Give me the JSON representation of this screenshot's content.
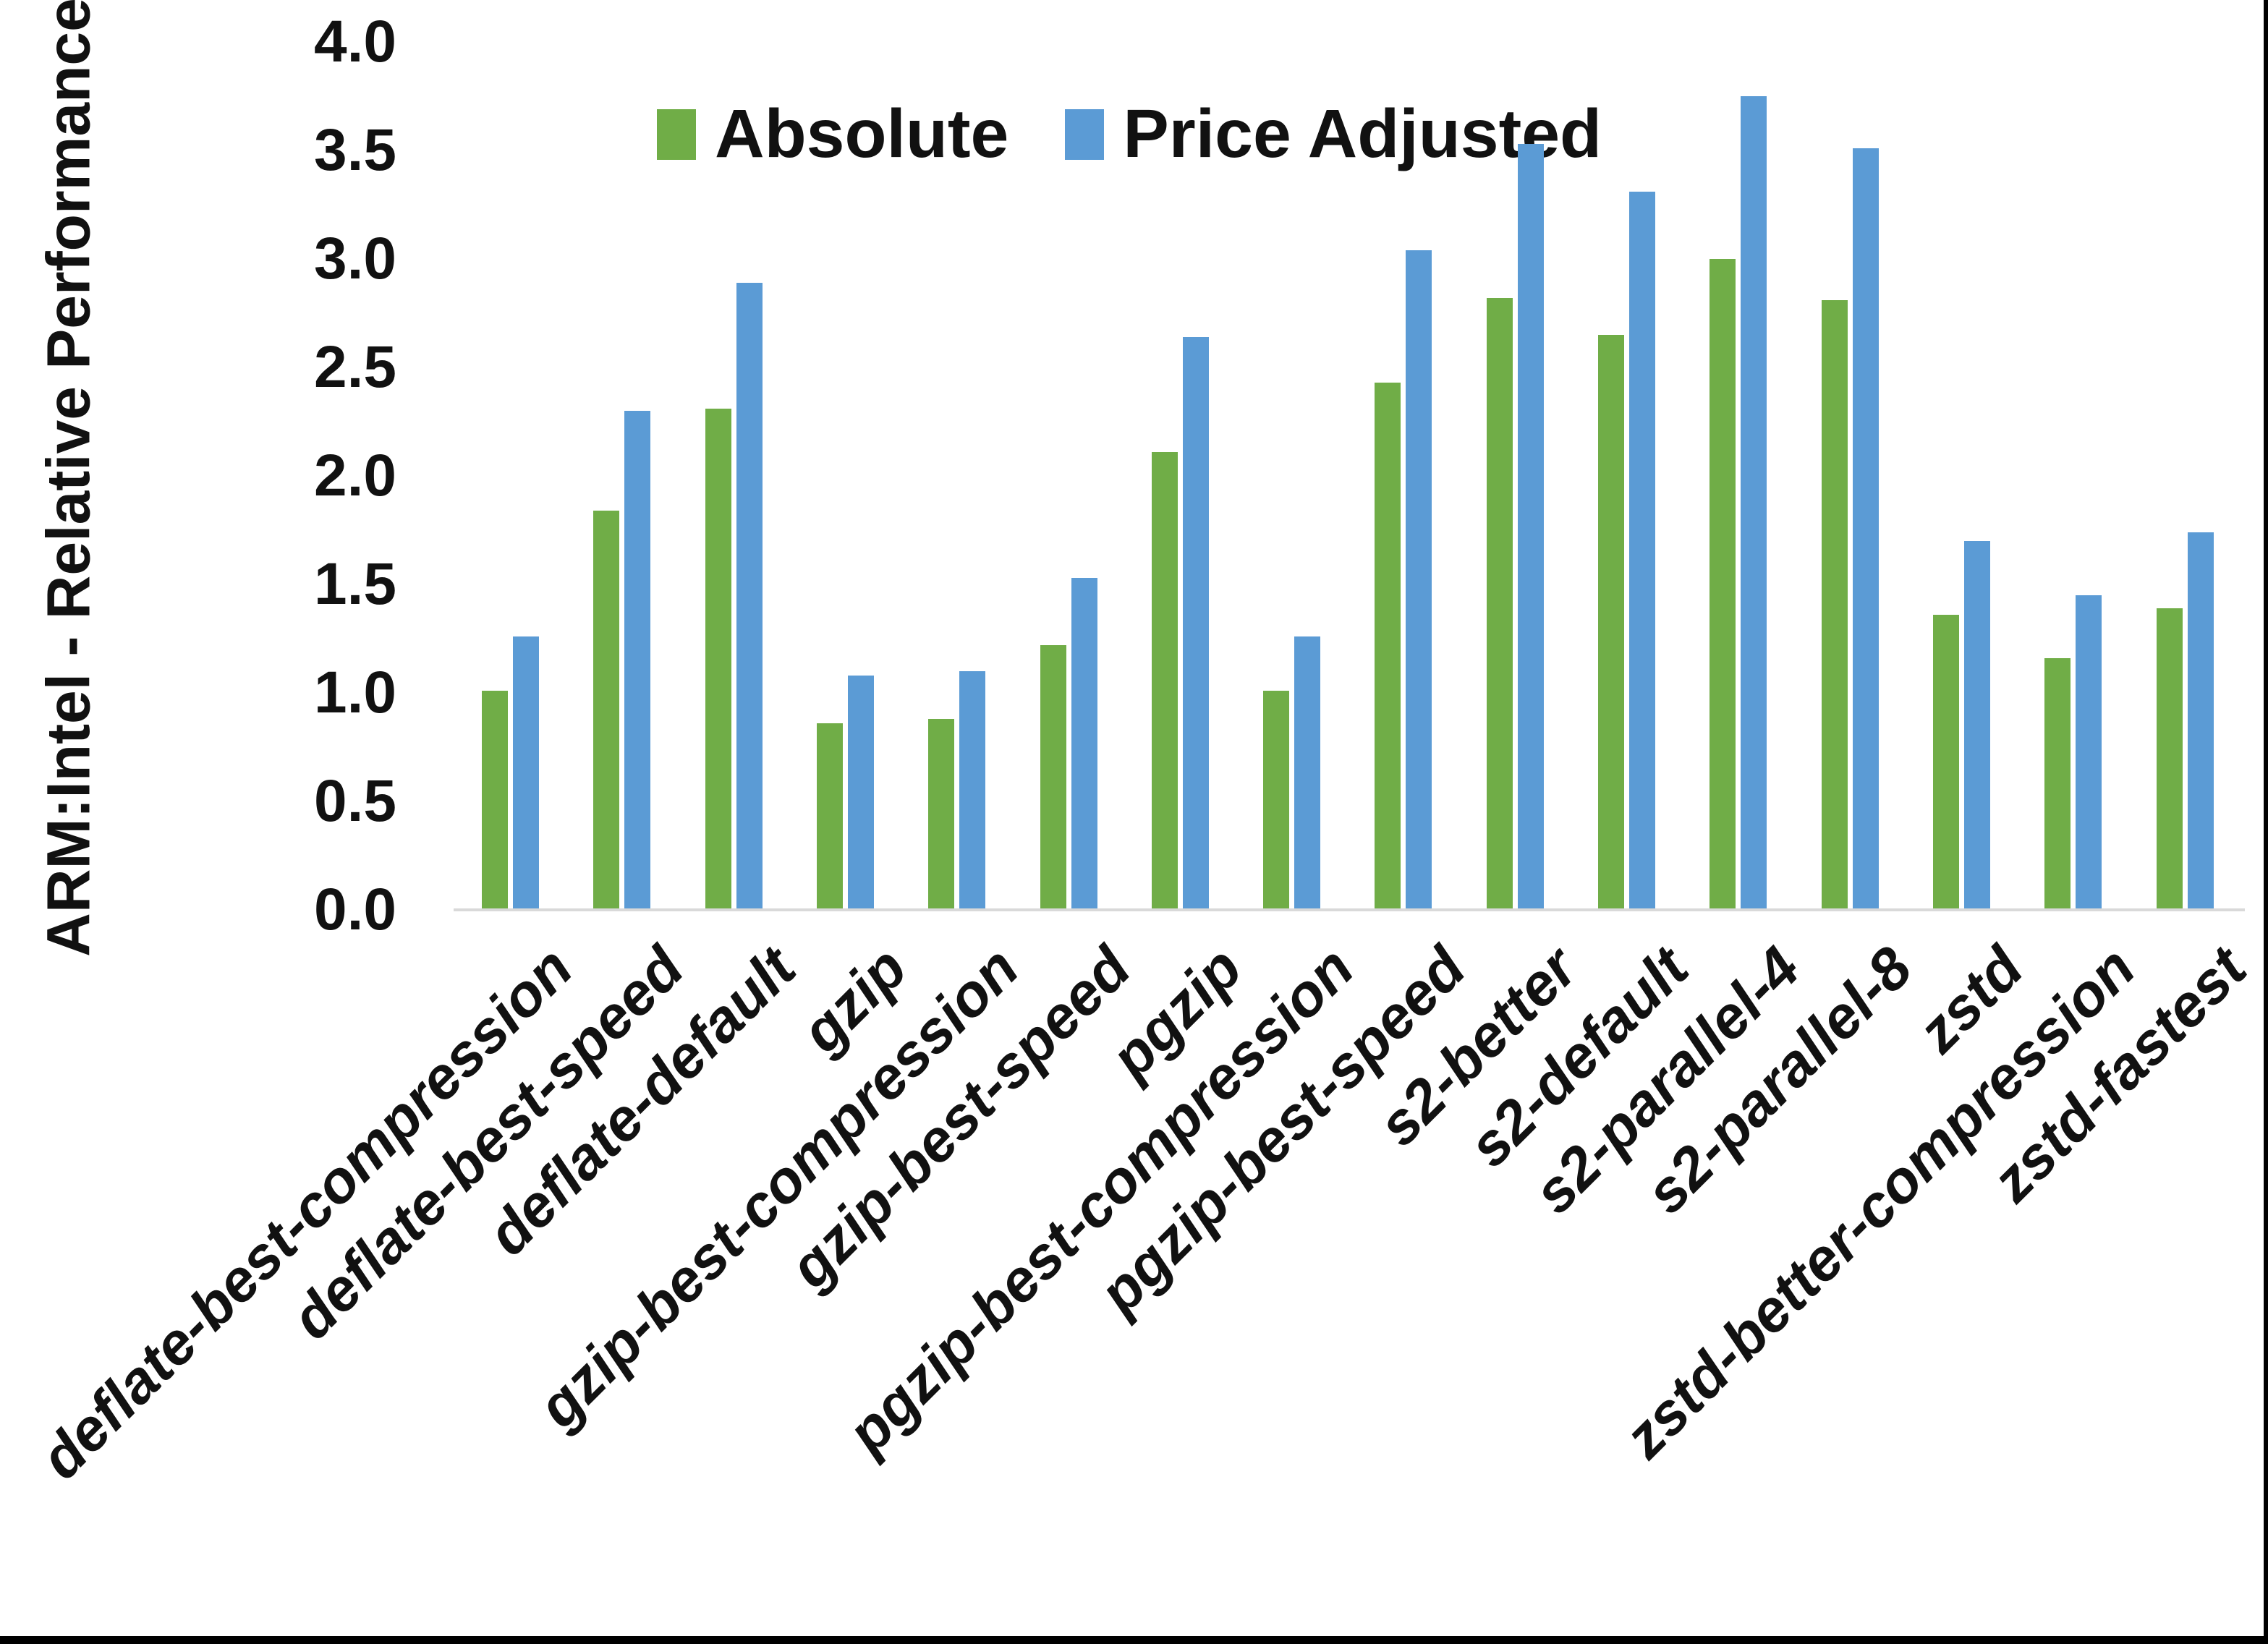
{
  "chart_data": {
    "type": "bar",
    "title": "",
    "xlabel": "",
    "ylabel": "ARM:Intel - Relative Performance",
    "ylim": [
      0.0,
      4.0
    ],
    "y_tick_step": 0.5,
    "y_tick_labels": [
      "0.0",
      "0.5",
      "1.0",
      "1.5",
      "2.0",
      "2.5",
      "3.0",
      "3.5",
      "4.0"
    ],
    "grid": false,
    "legend_position": "top-center",
    "axis_line_color": "#d9d9d9",
    "categories": [
      "deflate-best-compression",
      "deflate-best-speed",
      "deflate-default",
      "gzip",
      "gzip-best-compression",
      "gzip-best-speed",
      "pgzip",
      "pgzip-best-compression",
      "pgzip-best-speed",
      "s2-better",
      "s2-default",
      "s2-parallel-4",
      "s2-parallel-8",
      "zstd",
      "zstd-better-compression",
      "zstd-fastest"
    ],
    "series": [
      {
        "name": "Absolute",
        "color": "#70AD47",
        "values": [
          1.01,
          1.84,
          2.31,
          0.86,
          0.88,
          1.22,
          2.11,
          1.01,
          2.43,
          2.82,
          2.65,
          3.0,
          2.81,
          1.36,
          1.16,
          1.39
        ]
      },
      {
        "name": "Price Adjusted",
        "color": "#5B9BD5",
        "values": [
          1.26,
          2.3,
          2.89,
          1.08,
          1.1,
          1.53,
          2.64,
          1.26,
          3.04,
          3.53,
          3.31,
          3.75,
          3.51,
          1.7,
          1.45,
          1.74
        ]
      }
    ]
  }
}
